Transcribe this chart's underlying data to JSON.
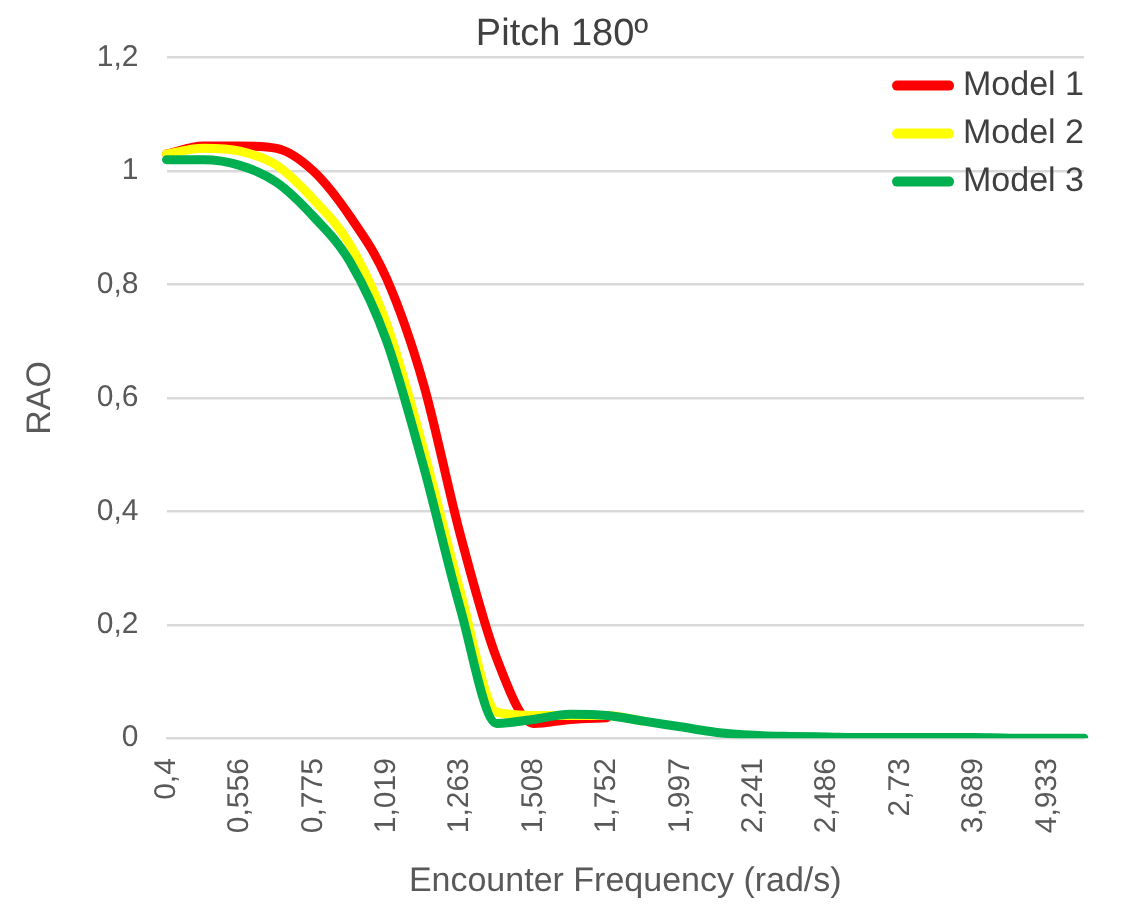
{
  "chart_data": {
    "type": "line",
    "title": "Pitch 180º",
    "xlabel": "Encounter Frequency (rad/s)",
    "ylabel": "RAO",
    "categories": [
      "0,4",
      null,
      "0,556",
      null,
      "0,775",
      null,
      "1,019",
      null,
      "1,263",
      null,
      "1,508",
      null,
      "1,752",
      null,
      "1,997",
      null,
      "2,241",
      null,
      "2,486",
      null,
      "2,73",
      null,
      "3,689",
      null,
      "4,933",
      null
    ],
    "series": [
      {
        "name": "Model 1",
        "color": "#ff0000",
        "values": [
          1.03,
          1.044,
          1.044,
          1.04,
          1.0,
          0.92,
          0.81,
          0.625,
          0.36,
          0.14,
          0.026,
          0.033,
          0.036,
          null,
          null,
          null,
          null,
          null,
          null,
          null,
          null,
          null,
          null,
          null,
          null,
          null
        ]
      },
      {
        "name": "Model 2",
        "color": "#ffff00",
        "values": [
          1.03,
          1.04,
          1.035,
          1.01,
          0.95,
          0.87,
          0.73,
          0.51,
          0.26,
          0.046,
          0.04,
          0.04,
          0.04,
          0.03,
          null,
          null,
          null,
          null,
          null,
          null,
          null,
          null,
          null,
          null,
          null,
          null
        ]
      },
      {
        "name": "Model 3",
        "color": "#00b050",
        "values": [
          1.02,
          1.02,
          1.01,
          0.98,
          0.92,
          0.84,
          0.7,
          0.48,
          0.23,
          0.026,
          0.033,
          0.042,
          0.04,
          0.03,
          0.02,
          0.01,
          0.005,
          0.003,
          0.002,
          0.001,
          0.001,
          0.001,
          0.001,
          0,
          0,
          0
        ]
      }
    ],
    "ylim": [
      0,
      1.2
    ],
    "yticks": [
      {
        "value": 0,
        "label": "0"
      },
      {
        "value": 0.2,
        "label": "0,2"
      },
      {
        "value": 0.4,
        "label": "0,4"
      },
      {
        "value": 0.6,
        "label": "0,6"
      },
      {
        "value": 0.8,
        "label": "0,8"
      },
      {
        "value": 1,
        "label": "1"
      },
      {
        "value": 1.2,
        "label": "1,2"
      }
    ],
    "grid": "y",
    "legend": "top right",
    "marker": "none",
    "line_style": "solid"
  }
}
